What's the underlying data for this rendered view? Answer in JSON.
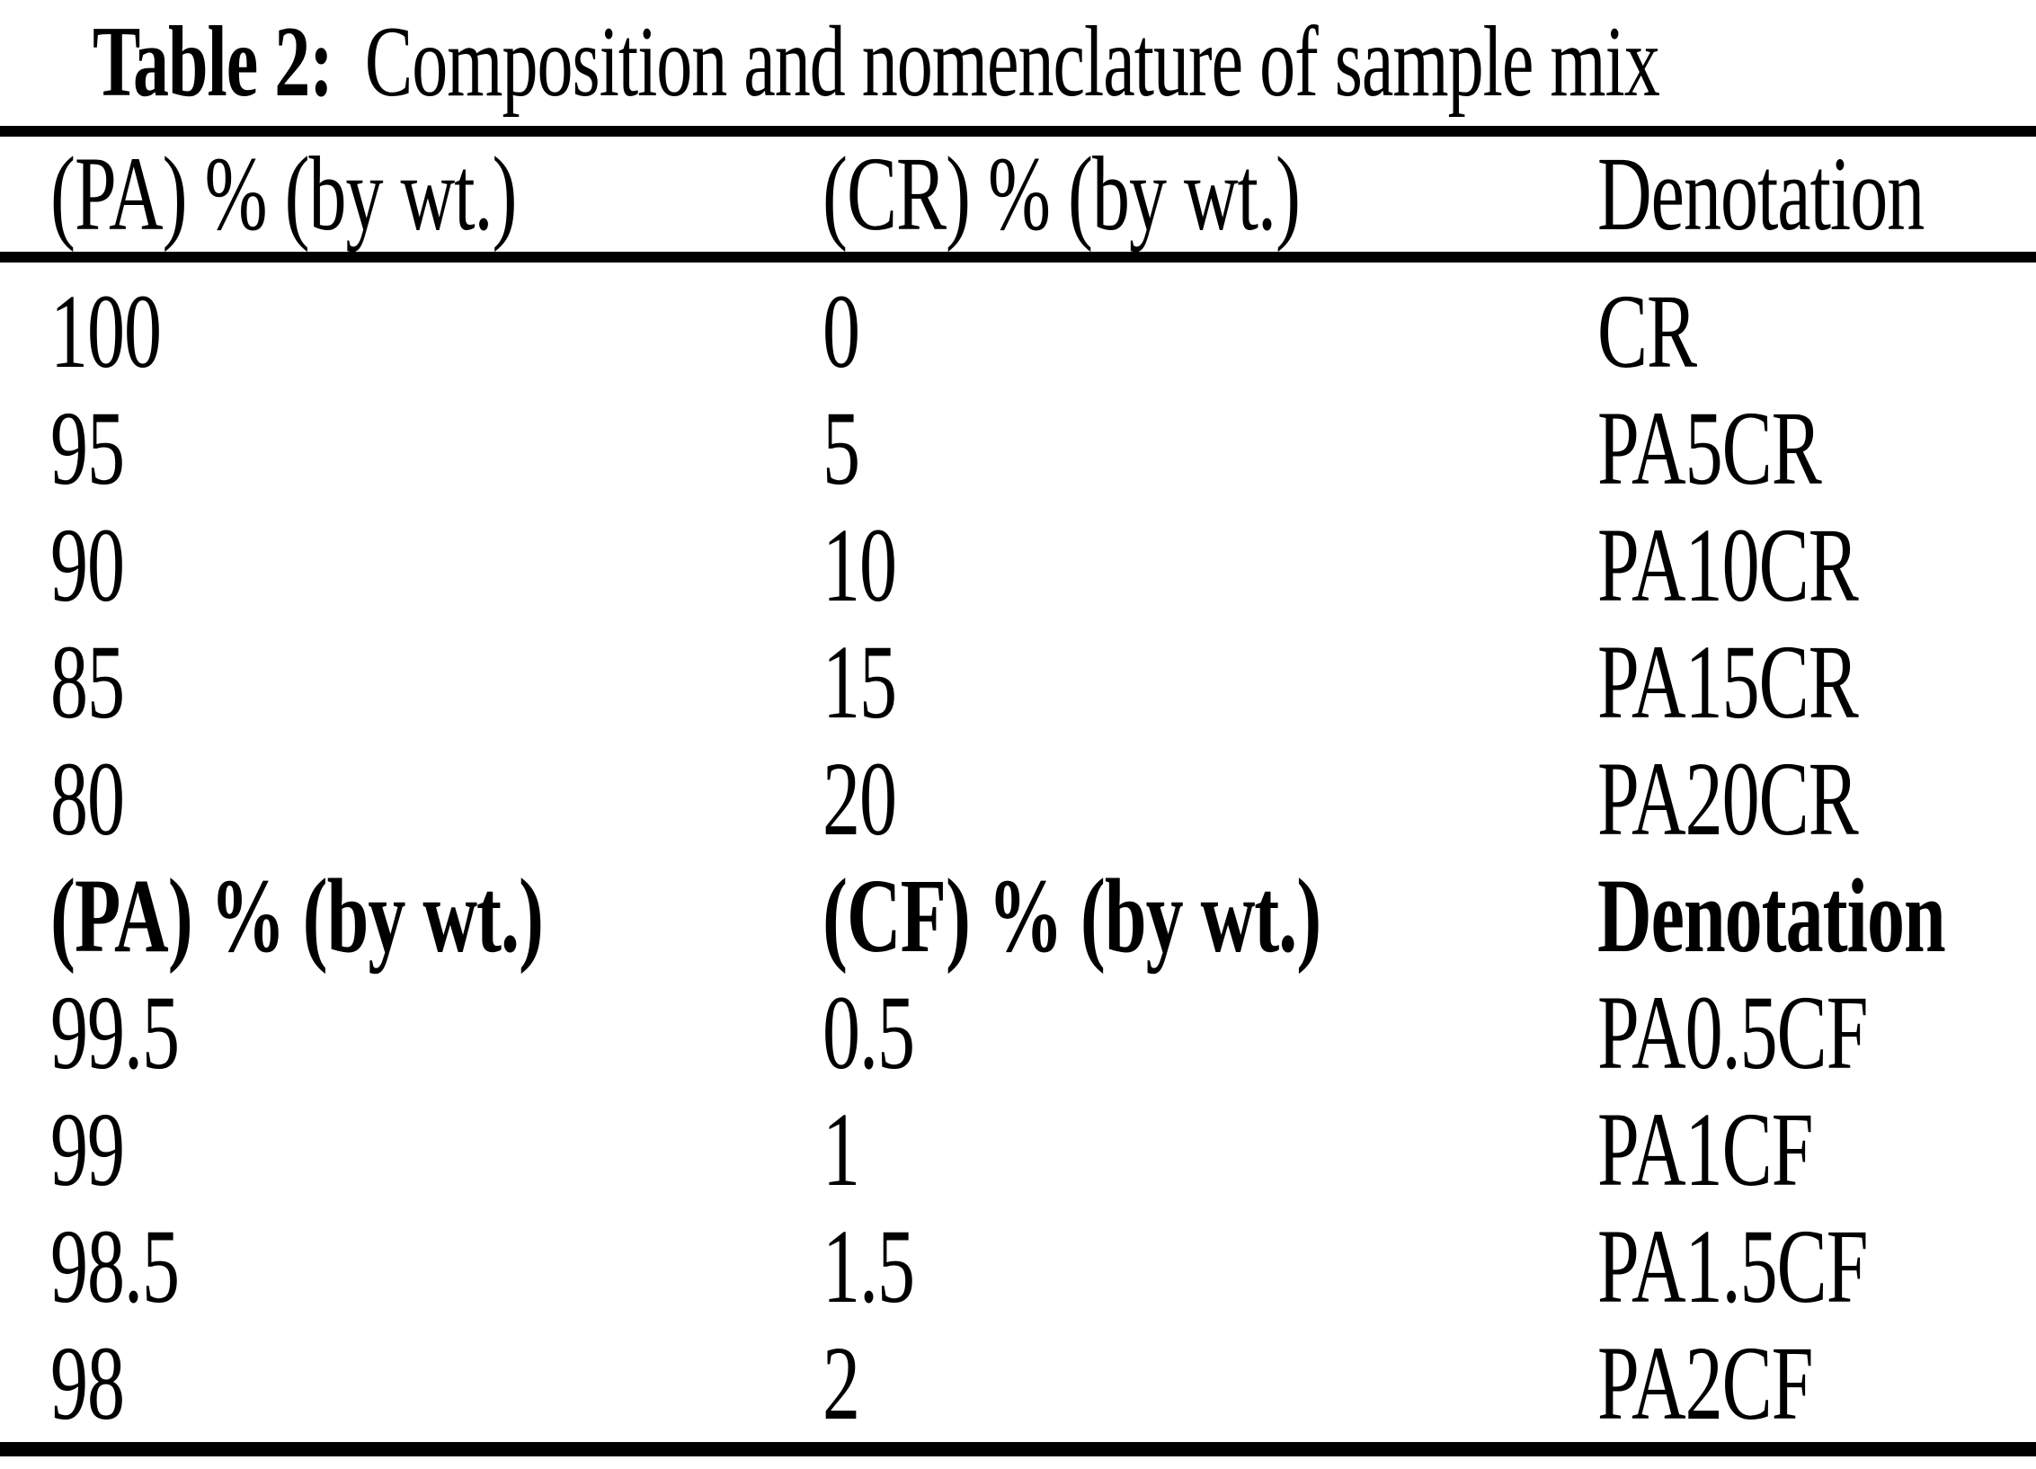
{
  "caption": {
    "label": "Table 2:",
    "text": "Composition and nomenclature of sample mix"
  },
  "table": {
    "header": {
      "col1": "(PA) % (by wt.)",
      "col2": "(CR) % (by wt.)",
      "col3": "Denotation"
    },
    "rows_cr": [
      {
        "pa": "100",
        "cr": "0",
        "denotation": "CR"
      },
      {
        "pa": "95",
        "cr": "5",
        "denotation": "PA5CR"
      },
      {
        "pa": "90",
        "cr": "10",
        "denotation": "PA10CR"
      },
      {
        "pa": "85",
        "cr": "15",
        "denotation": "PA15CR"
      },
      {
        "pa": "80",
        "cr": "20",
        "denotation": "PA20CR"
      }
    ],
    "subheader": {
      "col1": "(PA) % (by wt.)",
      "col2": "(CF) % (by wt.)",
      "col3": "Denotation"
    },
    "rows_cf": [
      {
        "pa": "99.5",
        "cf": "0.5",
        "denotation": "PA0.5CF"
      },
      {
        "pa": "99",
        "cf": "1",
        "denotation": "PA1CF"
      },
      {
        "pa": "98.5",
        "cf": "1.5",
        "denotation": "PA1.5CF"
      },
      {
        "pa": "98",
        "cf": "2",
        "denotation": "PA2CF"
      }
    ],
    "colors": {
      "text": "#000000",
      "background": "#ffffff",
      "rule": "#000000"
    }
  }
}
